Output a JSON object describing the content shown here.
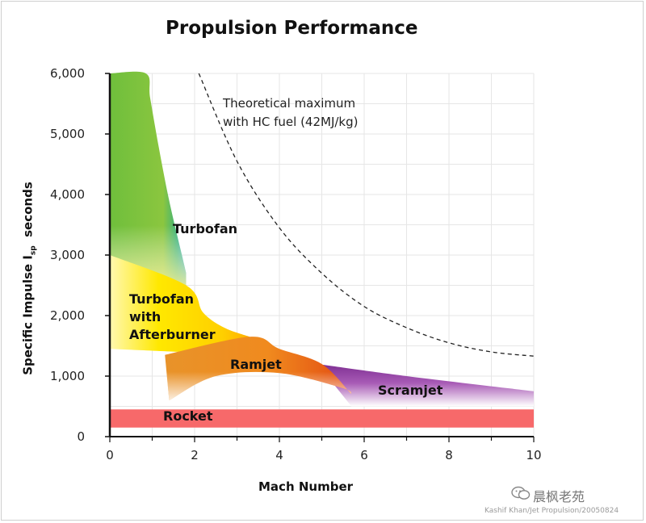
{
  "title": "Propulsion Performance",
  "chart_data": {
    "type": "area",
    "title": "Propulsion Performance",
    "xlabel": "Mach Number",
    "ylabel": "Specific Impulse I",
    "ylabel_sub": "sp",
    "ylabel_suffix": "seconds",
    "xlim": [
      0,
      10
    ],
    "ylim": [
      0,
      6000
    ],
    "x_ticks": [
      "0",
      "2",
      "4",
      "6",
      "8",
      "10"
    ],
    "y_ticks": [
      "0",
      "1,000",
      "2,000",
      "3,000",
      "4,000",
      "5,000",
      "6,000"
    ],
    "grid": true,
    "regions": [
      {
        "name": "Turbofan",
        "color": "#7ac143",
        "edge_color": "#2aa9c8",
        "upper": [
          [
            0,
            6000
          ],
          [
            0.85,
            6000
          ],
          [
            0.95,
            5600
          ],
          [
            1.15,
            4800
          ],
          [
            1.4,
            3900
          ],
          [
            1.7,
            3000
          ],
          [
            1.8,
            2700
          ]
        ],
        "lower": [
          [
            0,
            3000
          ],
          [
            1.8,
            2400
          ]
        ]
      },
      {
        "name": "Turbofan\nwith\nAfterburner",
        "color": "#ffe000",
        "upper": [
          [
            0,
            3000
          ],
          [
            1.8,
            2500
          ],
          [
            2.2,
            2050
          ],
          [
            2.7,
            1800
          ],
          [
            3.3,
            1650
          ]
        ],
        "lower": [
          [
            0,
            1450
          ],
          [
            3.3,
            1350
          ]
        ]
      },
      {
        "name": "Ramjet",
        "color": "#f0811e",
        "upper": [
          [
            1.3,
            1350
          ],
          [
            3.3,
            1650
          ],
          [
            4.0,
            1450
          ],
          [
            5.0,
            1200
          ],
          [
            5.7,
            700
          ]
        ],
        "lower": [
          [
            1.4,
            600
          ],
          [
            2.5,
            1000
          ],
          [
            4.0,
            1050
          ],
          [
            5.5,
            800
          ],
          [
            5.7,
            700
          ]
        ]
      },
      {
        "name": "Scramjet",
        "color": "#8e3a9e",
        "upper": [
          [
            4.9,
            1200
          ],
          [
            7.0,
            1000
          ],
          [
            10.0,
            750
          ]
        ],
        "lower": [
          [
            5.7,
            500
          ],
          [
            10.0,
            500
          ]
        ]
      },
      {
        "name": "Rocket",
        "color": "#f7696a",
        "upper": [
          [
            0,
            450
          ],
          [
            10.0,
            450
          ]
        ],
        "lower": [
          [
            0,
            150
          ],
          [
            10.0,
            150
          ]
        ]
      }
    ],
    "theoretical_max": {
      "label_line1": "Theoretical maximum",
      "label_line2": "with HC fuel (42MJ/kg)",
      "style": "dashed",
      "points": [
        [
          2.1,
          6000
        ],
        [
          3.0,
          4550
        ],
        [
          4.0,
          3450
        ],
        [
          5.0,
          2700
        ],
        [
          6.0,
          2150
        ],
        [
          7.0,
          1800
        ],
        [
          8.0,
          1550
        ],
        [
          9.0,
          1400
        ],
        [
          10.0,
          1330
        ]
      ]
    }
  },
  "watermark": {
    "icon": "wechat-icon",
    "text": "晨枫老苑"
  },
  "credit": "Kashif Khan/Jet Propulsion/20050824"
}
